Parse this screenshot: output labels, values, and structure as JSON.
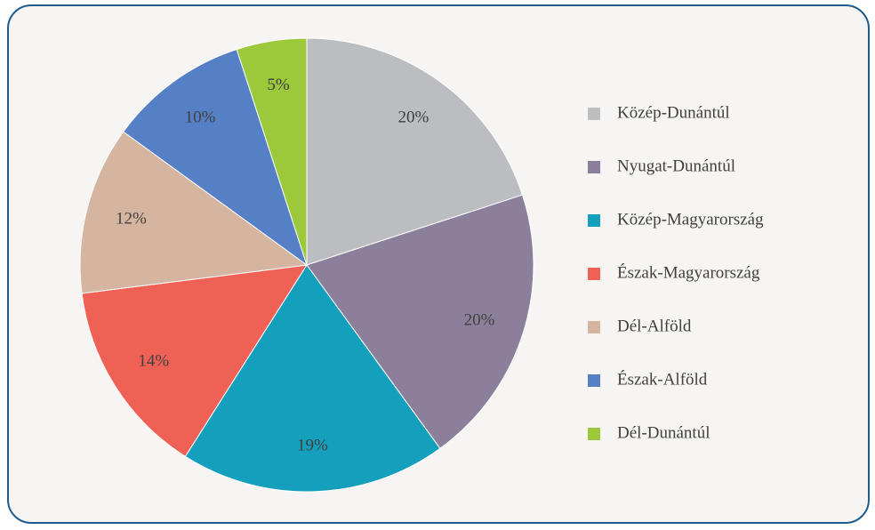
{
  "chart_data": {
    "type": "pie",
    "categories": [
      "Közép-Dunántúl",
      "Nyugat-Dunántúl",
      "Közép-Magyarország",
      "Észak-Magyarország",
      "Dél-Alföld",
      "Észak-Alföld",
      "Dél-Dunántúl"
    ],
    "values": [
      20,
      20,
      19,
      14,
      12,
      10,
      5
    ],
    "value_labels": [
      "20%",
      "20%",
      "19%",
      "14%",
      "12%",
      "10%",
      "5%"
    ],
    "colors": [
      "#bcbdc0",
      "#8b7f9c",
      "#14a0bd",
      "#f06155",
      "#d5b5a0",
      "#5580c5",
      "#9cc93c"
    ],
    "legend": "right"
  }
}
